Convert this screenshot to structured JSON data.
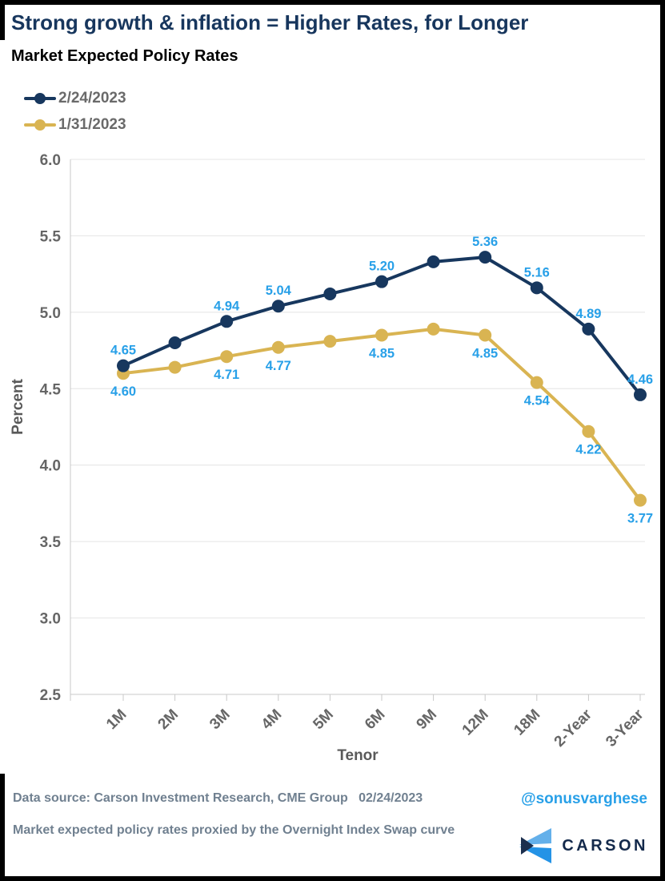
{
  "header": {
    "title": "Strong growth & inflation = Higher Rates, for Longer",
    "subtitle": "Market Expected Policy Rates"
  },
  "legend": {
    "items": [
      {
        "label": "2/24/2023",
        "color": "#17375e"
      },
      {
        "label": "1/31/2023",
        "color": "#d9b452"
      }
    ]
  },
  "chart_data": {
    "type": "line",
    "title": "Market Expected Policy Rates",
    "categories": [
      "1M",
      "2M",
      "3M",
      "4M",
      "5M",
      "6M",
      "9M",
      "12M",
      "18M",
      "2-Year",
      "3-Year"
    ],
    "series": [
      {
        "name": "2/24/2023",
        "color": "#17375e",
        "values": [
          4.65,
          4.8,
          4.94,
          5.04,
          5.12,
          5.2,
          5.33,
          5.36,
          5.16,
          4.89,
          4.46
        ],
        "point_labels": [
          "4.65",
          null,
          "4.94",
          "5.04",
          null,
          "5.20",
          null,
          "5.36",
          "5.16",
          "4.89",
          "4.46"
        ],
        "label_side": "above"
      },
      {
        "name": "1/31/2023",
        "color": "#d9b452",
        "values": [
          4.6,
          4.64,
          4.71,
          4.77,
          4.81,
          4.85,
          4.89,
          4.85,
          4.54,
          4.22,
          3.77
        ],
        "point_labels": [
          "4.60",
          null,
          "4.71",
          "4.77",
          null,
          "4.85",
          null,
          "4.85",
          "4.54",
          "4.22",
          "3.77"
        ],
        "label_side": "below"
      }
    ],
    "xlabel": "Tenor",
    "ylabel": "Percent",
    "ylim": [
      2.5,
      6.0
    ],
    "yticks": [
      "6.0",
      "5.5",
      "5.0",
      "4.5",
      "4.0",
      "3.5",
      "3.0",
      "2.5"
    ],
    "grid": true,
    "legend_position": "top-left",
    "data_label_color": "#28a0e8",
    "grid_color": "#e4e4e4",
    "axis_color": "#c8c8c8",
    "tick_label_color": "#666666",
    "axis_title_color": "#595959"
  },
  "footer": {
    "source_line": "Data source: Carson Investment Research, CME Group   02/24/2023",
    "note_line": "Market expected policy rates proxied by the Overnight Index Swap curve",
    "handle": "@sonusvarghese",
    "logo_text": "CARSON"
  },
  "colors": {
    "title": "#17365d",
    "accent_blue": "#28a0e8",
    "footer_text": "#708090",
    "logo_light_blue": "#64b0ea",
    "logo_bright_blue": "#2493e6",
    "logo_dark_navy": "#1b2f4e"
  }
}
